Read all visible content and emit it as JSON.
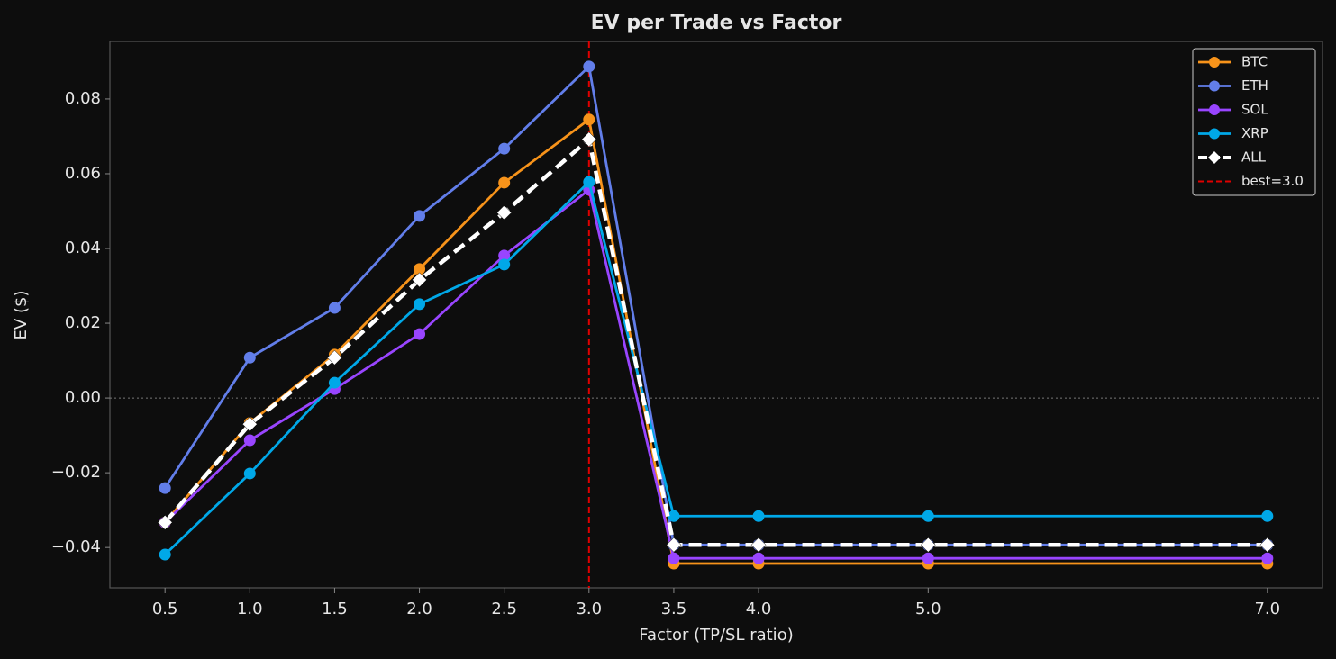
{
  "chart_data": {
    "type": "line",
    "title": "EV per Trade vs Factor",
    "x_label": "Factor (TP/SL ratio)",
    "y_label": "EV ($)",
    "x": [
      0.5,
      1.0,
      1.5,
      2.0,
      2.5,
      3.0,
      3.5,
      4.0,
      5.0,
      7.0
    ],
    "series": [
      {
        "name": "BTC",
        "color": "#f7931a",
        "style": "solid",
        "marker": "circle",
        "values": [
          -0.0333,
          -0.0067,
          0.0116,
          0.0345,
          0.0576,
          0.0745,
          -0.0443,
          -0.0443,
          -0.0443,
          -0.0443
        ]
      },
      {
        "name": "ETH",
        "color": "#627eea",
        "style": "solid",
        "marker": "circle",
        "values": [
          -0.0241,
          0.0108,
          0.0241,
          0.0487,
          0.0667,
          0.0887,
          -0.0393,
          -0.0393,
          -0.0393,
          -0.0393
        ]
      },
      {
        "name": "SOL",
        "color": "#9945ff",
        "style": "solid",
        "marker": "circle",
        "values": [
          -0.0333,
          -0.0113,
          0.0024,
          0.0171,
          0.0381,
          0.0557,
          -0.0429,
          -0.0429,
          -0.0429,
          -0.0429
        ]
      },
      {
        "name": "XRP",
        "color": "#00a8e8",
        "style": "solid",
        "marker": "circle",
        "values": [
          -0.0419,
          -0.0202,
          0.0041,
          0.0251,
          0.0357,
          0.0578,
          -0.0316,
          -0.0316,
          -0.0316,
          -0.0316
        ]
      },
      {
        "name": "ALL",
        "color": "#ffffff",
        "style": "dashed",
        "marker": "diamond",
        "values": [
          -0.0333,
          -0.007,
          0.0108,
          0.0316,
          0.0496,
          0.0692,
          -0.0393,
          -0.0393,
          -0.0393,
          -0.0393
        ]
      }
    ],
    "reference_line": {
      "value": 3.0,
      "label": "best=3.0",
      "color": "#e00000"
    },
    "zero_line": true,
    "xlim": [
      0.175,
      7.325
    ],
    "ylim": [
      -0.0508,
      0.0954
    ],
    "xticks": [
      0.5,
      {
        "value": 1.0,
        "label": "1.0"
      },
      1.5,
      {
        "value": 2.0,
        "label": "2.0"
      },
      2.5,
      {
        "value": 3.0,
        "label": "3.0"
      },
      3.5,
      {
        "value": 4.0,
        "label": "4.0"
      },
      {
        "value": 5.0,
        "label": "5.0"
      },
      {
        "value": 7.0,
        "label": "7.0"
      }
    ],
    "yticks": [
      {
        "value": -0.04,
        "label": "−0.04"
      },
      {
        "value": -0.02,
        "label": "−0.02"
      },
      {
        "value": 0,
        "label": "0.00"
      },
      0.02,
      0.04,
      0.06,
      0.08
    ],
    "legend": "upper right"
  }
}
